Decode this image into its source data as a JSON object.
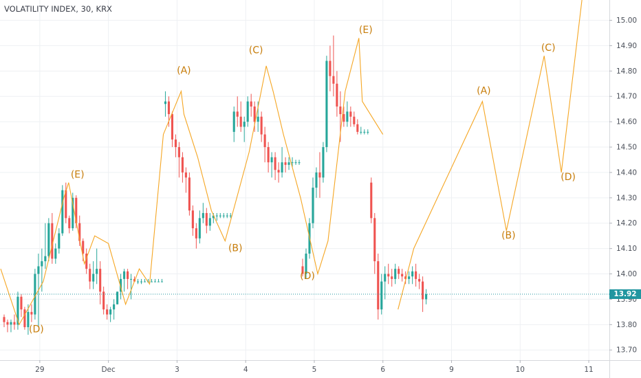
{
  "chart_data": {
    "type": "candlestick",
    "title": "VOLATILITY INDEX, 30, KRX",
    "y_axis": {
      "ticks": [
        "15.00",
        "14.90",
        "14.80",
        "14.70",
        "14.60",
        "14.50",
        "14.40",
        "14.30",
        "14.20",
        "14.10",
        "14.00",
        "13.90",
        "13.80",
        "13.70"
      ],
      "range": [
        13.66,
        15.08
      ],
      "position": "right"
    },
    "x_axis": {
      "ticks": [
        {
          "label": "29",
          "t": 0.5
        },
        {
          "label": "Dec",
          "t": 1.5
        },
        {
          "label": "3",
          "t": 2.5
        },
        {
          "label": "4",
          "t": 3.5
        },
        {
          "label": "5",
          "t": 4.5
        },
        {
          "label": "6",
          "t": 5.5
        },
        {
          "label": "9",
          "t": 6.5
        },
        {
          "label": "10",
          "t": 7.5
        },
        {
          "label": "11",
          "t": 8.5
        }
      ],
      "range": [
        -0.08,
        8.8
      ]
    },
    "grid": true,
    "current_price": {
      "value": 13.92,
      "label": "13.92",
      "color": "#2196a0"
    },
    "colors": {
      "up": "#26a69a",
      "down": "#ef5350",
      "wave": "#f5a623",
      "wave_label": "#c77d0a",
      "grid": "#eef0f3"
    },
    "candles": [
      [
        13.83,
        13.84,
        13.79,
        13.81
      ],
      [
        13.81,
        13.82,
        13.77,
        13.8
      ],
      [
        13.8,
        13.82,
        13.77,
        13.81
      ],
      [
        13.81,
        13.84,
        13.78,
        13.8
      ],
      [
        13.8,
        13.93,
        13.78,
        13.91
      ],
      [
        13.91,
        13.92,
        13.83,
        13.86
      ],
      [
        13.86,
        13.87,
        13.78,
        13.79
      ],
      [
        13.79,
        13.88,
        13.76,
        13.85
      ],
      [
        13.85,
        13.88,
        13.81,
        13.84
      ],
      [
        13.84,
        14.02,
        13.82,
        14.0
      ],
      [
        14.0,
        14.08,
        13.79,
        14.03
      ],
      [
        14.03,
        14.1,
        13.93,
        14.05
      ],
      [
        14.05,
        14.2,
        14.02,
        14.07
      ],
      [
        14.07,
        14.22,
        14.05,
        14.2
      ],
      [
        14.2,
        14.24,
        14.04,
        14.06
      ],
      [
        14.06,
        14.12,
        14.04,
        14.1
      ],
      [
        14.1,
        14.18,
        14.08,
        14.16
      ],
      [
        14.16,
        14.35,
        14.15,
        14.33
      ],
      [
        14.33,
        14.36,
        14.2,
        14.22
      ],
      [
        14.22,
        14.23,
        14.16,
        14.18
      ],
      [
        14.18,
        14.32,
        14.17,
        14.3
      ],
      [
        14.3,
        14.31,
        14.18,
        14.2
      ],
      [
        14.2,
        14.23,
        14.11,
        14.13
      ],
      [
        14.13,
        14.14,
        14.05,
        14.08
      ],
      [
        14.08,
        14.1,
        14.0,
        14.02
      ],
      [
        14.02,
        14.04,
        13.94,
        13.97
      ],
      [
        13.97,
        14.05,
        13.94,
        14.0
      ],
      [
        14.0,
        14.1,
        13.96,
        14.02
      ],
      [
        14.02,
        14.05,
        13.88,
        13.93
      ],
      [
        13.93,
        13.95,
        13.84,
        13.86
      ],
      [
        13.86,
        13.88,
        13.82,
        13.84
      ],
      [
        13.84,
        13.87,
        13.81,
        13.86
      ],
      [
        13.86,
        13.9,
        13.82,
        13.88
      ],
      [
        13.88,
        13.93,
        13.88,
        13.93
      ],
      [
        13.93,
        14.0,
        13.9,
        13.98
      ],
      [
        13.98,
        14.02,
        13.93,
        14.01
      ],
      [
        14.01,
        14.02,
        13.94,
        13.98
      ],
      [
        13.98,
        14.0,
        13.9,
        13.98
      ],
      [
        13.98,
        13.99,
        13.97,
        13.97
      ],
      [
        13.97,
        13.98,
        13.96,
        13.97
      ],
      [
        13.97,
        13.98,
        13.96,
        13.97
      ],
      [
        13.97,
        13.98,
        13.97,
        13.97
      ],
      [
        13.97,
        13.98,
        13.97,
        13.97
      ],
      [
        13.97,
        13.98,
        13.97,
        13.97
      ],
      [
        13.97,
        13.98,
        13.97,
        13.97
      ],
      [
        13.97,
        13.98,
        13.97,
        13.97
      ],
      [
        13.97,
        13.98,
        13.97,
        13.97
      ],
      [
        14.67,
        14.72,
        14.62,
        14.68
      ],
      [
        14.68,
        14.7,
        14.58,
        14.63
      ],
      [
        14.63,
        14.64,
        14.5,
        14.53
      ],
      [
        14.53,
        14.55,
        14.46,
        14.5
      ],
      [
        14.5,
        14.52,
        14.38,
        14.46
      ],
      [
        14.46,
        14.48,
        14.36,
        14.4
      ],
      [
        14.4,
        14.42,
        14.32,
        14.38
      ],
      [
        14.38,
        14.4,
        14.23,
        14.25
      ],
      [
        14.25,
        14.27,
        14.15,
        14.18
      ],
      [
        14.18,
        14.2,
        14.1,
        14.14
      ],
      [
        14.14,
        14.25,
        14.12,
        14.22
      ],
      [
        14.22,
        14.28,
        14.2,
        14.24
      ],
      [
        14.24,
        14.26,
        14.16,
        14.19
      ],
      [
        14.19,
        14.24,
        14.17,
        14.22
      ],
      [
        14.22,
        14.24,
        14.2,
        14.23
      ],
      [
        14.23,
        14.24,
        14.21,
        14.23
      ],
      [
        14.23,
        14.24,
        14.22,
        14.23
      ],
      [
        14.23,
        14.24,
        14.22,
        14.23
      ],
      [
        14.23,
        14.24,
        14.22,
        14.23
      ],
      [
        14.23,
        14.24,
        14.22,
        14.23
      ],
      [
        14.56,
        14.66,
        14.52,
        14.64
      ],
      [
        14.64,
        14.7,
        14.58,
        14.62
      ],
      [
        14.62,
        14.68,
        14.56,
        14.58
      ],
      [
        14.58,
        14.62,
        14.52,
        14.6
      ],
      [
        14.6,
        14.7,
        14.58,
        14.68
      ],
      [
        14.68,
        14.71,
        14.62,
        14.66
      ],
      [
        14.66,
        14.68,
        14.56,
        14.6
      ],
      [
        14.6,
        14.68,
        14.56,
        14.62
      ],
      [
        14.62,
        14.64,
        14.52,
        14.55
      ],
      [
        14.55,
        14.58,
        14.44,
        14.5
      ],
      [
        14.5,
        14.52,
        14.4,
        14.44
      ],
      [
        14.44,
        14.48,
        14.38,
        14.46
      ],
      [
        14.46,
        14.48,
        14.37,
        14.41
      ],
      [
        14.41,
        14.44,
        14.36,
        14.4
      ],
      [
        14.4,
        14.5,
        14.38,
        14.44
      ],
      [
        14.44,
        14.46,
        14.4,
        14.43
      ],
      [
        14.43,
        14.46,
        14.41,
        14.44
      ],
      [
        14.44,
        14.46,
        14.42,
        14.44
      ],
      [
        14.44,
        14.45,
        14.43,
        14.44
      ],
      [
        14.44,
        14.45,
        14.43,
        14.44
      ],
      [
        14.03,
        14.06,
        13.99,
        14.0
      ],
      [
        14.0,
        14.1,
        13.98,
        14.08
      ],
      [
        14.08,
        14.22,
        14.06,
        14.2
      ],
      [
        14.2,
        14.38,
        14.18,
        14.34
      ],
      [
        14.34,
        14.42,
        14.3,
        14.4
      ],
      [
        14.4,
        14.48,
        14.3,
        14.38
      ],
      [
        14.38,
        14.52,
        14.36,
        14.5
      ],
      [
        14.5,
        14.86,
        14.48,
        14.84
      ],
      [
        14.84,
        14.9,
        14.72,
        14.78
      ],
      [
        14.78,
        14.94,
        14.7,
        14.75
      ],
      [
        14.75,
        14.8,
        14.62,
        14.66
      ],
      [
        14.66,
        14.72,
        14.52,
        14.63
      ],
      [
        14.63,
        14.66,
        14.58,
        14.6
      ],
      [
        14.6,
        14.68,
        14.58,
        14.64
      ],
      [
        14.64,
        14.66,
        14.58,
        14.62
      ],
      [
        14.62,
        14.64,
        14.58,
        14.59
      ],
      [
        14.59,
        14.61,
        14.55,
        14.56
      ],
      [
        14.56,
        14.58,
        14.55,
        14.56
      ],
      [
        14.56,
        14.57,
        14.55,
        14.56
      ],
      [
        14.56,
        14.57,
        14.55,
        14.56
      ],
      [
        14.36,
        14.38,
        14.2,
        14.22
      ],
      [
        14.22,
        14.24,
        14.0,
        14.05
      ],
      [
        14.05,
        14.08,
        13.82,
        13.86
      ],
      [
        13.86,
        14.0,
        13.84,
        13.97
      ],
      [
        13.97,
        14.03,
        13.9,
        14.0
      ],
      [
        14.0,
        14.04,
        13.96,
        13.99
      ],
      [
        13.99,
        14.02,
        13.95,
        13.98
      ],
      [
        13.98,
        14.04,
        13.96,
        14.02
      ],
      [
        14.02,
        14.03,
        13.98,
        14.0
      ],
      [
        14.0,
        14.02,
        13.97,
        13.99
      ],
      [
        13.99,
        14.01,
        13.96,
        13.98
      ],
      [
        13.98,
        14.01,
        13.96,
        13.99
      ],
      [
        13.99,
        14.03,
        13.96,
        14.01
      ],
      [
        14.01,
        14.04,
        13.95,
        13.98
      ],
      [
        13.98,
        14.0,
        13.94,
        13.97
      ],
      [
        13.97,
        13.99,
        13.85,
        13.9
      ],
      [
        13.9,
        13.94,
        13.88,
        13.92
      ]
    ],
    "wave_lines": [
      {
        "points": [
          [
            -0.07,
            14.02
          ],
          [
            0.2,
            13.8
          ],
          [
            0.55,
            13.97
          ],
          [
            0.85,
            14.3
          ],
          [
            0.92,
            14.36
          ],
          [
            1.15,
            14.04
          ],
          [
            1.3,
            14.15
          ],
          [
            1.5,
            14.12
          ],
          [
            1.75,
            13.88
          ],
          [
            1.95,
            14.02
          ],
          [
            2.1,
            13.96
          ],
          [
            2.3,
            14.55
          ],
          [
            2.56,
            14.72
          ],
          [
            2.6,
            14.63
          ],
          [
            2.8,
            14.46
          ],
          [
            3.0,
            14.25
          ],
          [
            3.2,
            14.13
          ],
          [
            3.55,
            14.48
          ],
          [
            3.8,
            14.82
          ],
          [
            3.9,
            14.72
          ],
          [
            4.05,
            14.55
          ],
          [
            4.3,
            14.3
          ],
          [
            4.55,
            14.0
          ],
          [
            4.7,
            14.13
          ],
          [
            4.95,
            14.72
          ],
          [
            5.15,
            14.93
          ],
          [
            5.2,
            14.68
          ],
          [
            5.5,
            14.55
          ]
        ]
      },
      {
        "points": [
          [
            5.72,
            13.86
          ],
          [
            5.95,
            14.1
          ],
          [
            6.95,
            14.68
          ],
          [
            7.3,
            14.17
          ],
          [
            7.85,
            14.86
          ],
          [
            8.1,
            14.4
          ],
          [
            8.4,
            15.08
          ]
        ]
      }
    ],
    "wave_labels": [
      {
        "text": "(D)",
        "t": 0.45,
        "v": 13.77
      },
      {
        "text": "(E)",
        "t": 1.05,
        "v": 14.38
      },
      {
        "text": "(A)",
        "t": 2.6,
        "v": 14.79
      },
      {
        "text": "(B)",
        "t": 3.35,
        "v": 14.09
      },
      {
        "text": "(C)",
        "t": 3.65,
        "v": 14.87
      },
      {
        "text": "(D)",
        "t": 4.4,
        "v": 13.98
      },
      {
        "text": "(E)",
        "t": 5.25,
        "v": 14.95
      },
      {
        "text": "(A)",
        "t": 6.97,
        "v": 14.71
      },
      {
        "text": "(B)",
        "t": 7.33,
        "v": 14.14
      },
      {
        "text": "(C)",
        "t": 7.91,
        "v": 14.88
      },
      {
        "text": "(D)",
        "t": 8.2,
        "v": 14.37
      }
    ]
  }
}
